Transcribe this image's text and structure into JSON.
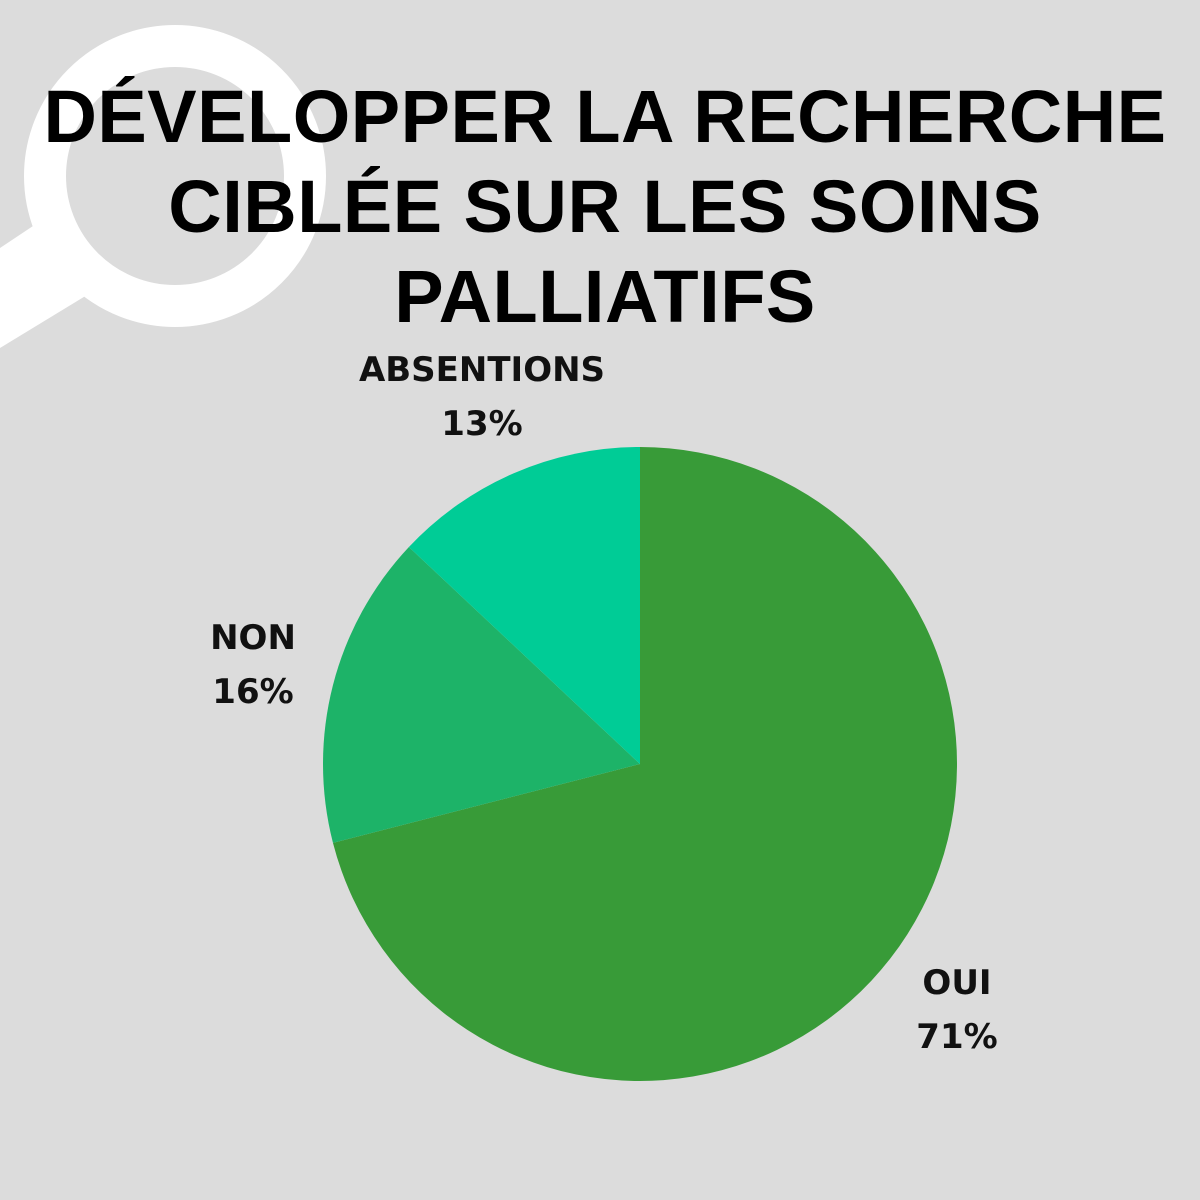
{
  "title_lines": [
    "DÉVELOPPER LA RECHERCHE",
    "CIBLÉE SUR LES SOINS",
    "PALLIATIFS"
  ],
  "decoration": {
    "icon": "magnifying-glass-icon",
    "color": "#ffffff"
  },
  "chart_data": {
    "type": "pie",
    "title": "DÉVELOPPER LA RECHERCHE CIBLÉE SUR LES SOINS PALLIATIFS",
    "start": "12 o'clock",
    "direction": "clockwise",
    "slices": [
      {
        "label": "OUI",
        "value": 71,
        "value_label": "71%",
        "color": "#389b38"
      },
      {
        "label": "NON",
        "value": 16,
        "value_label": "16%",
        "color": "#1db368"
      },
      {
        "label": "ABSENTIONS",
        "value": 13,
        "value_label": "13%",
        "color": "#00cc96"
      }
    ]
  }
}
